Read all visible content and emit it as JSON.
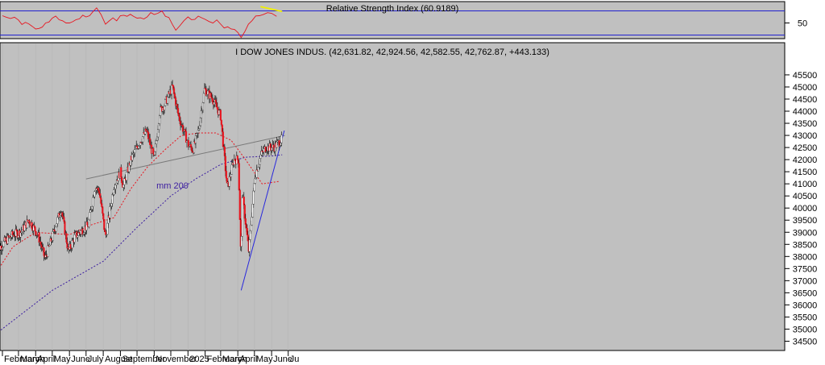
{
  "chart_data": [
    {
      "type": "line",
      "title": "Relative Strength Index (60.9189)",
      "y_ticks": [
        50
      ],
      "bands": [
        30,
        70
      ],
      "series": [
        {
          "name": "Relative Strength Index",
          "color": "#e8141e",
          "x": [
            "2024-02-01",
            "2024-03-01",
            "2024-04-01",
            "2024-05-01",
            "2024-06-01",
            "2024-07-01",
            "2024-07-20",
            "2024-08-05",
            "2024-09-01",
            "2024-10-01",
            "2024-11-01",
            "2024-11-15",
            "2024-12-10",
            "2025-01-01",
            "2025-02-01",
            "2025-03-01",
            "2025-03-20",
            "2025-04-07",
            "2025-04-20",
            "2025-05-10",
            "2025-06-01",
            "2025-06-10"
          ],
          "values": [
            62,
            55,
            40,
            58,
            50,
            60,
            75,
            48,
            62,
            58,
            64,
            70,
            38,
            60,
            56,
            48,
            40,
            26,
            48,
            62,
            66,
            61
          ]
        },
        {
          "name": "",
          "color": "#f0f000",
          "x": [
            "2025-05-12",
            "2025-06-20"
          ],
          "values": [
            77,
            69
          ]
        }
      ]
    },
    {
      "type": "candlestick",
      "title": "I DOW JONES INDUS. (42,631.82, 42,924.56, 42,582.55, 42,762.87, +443.133)",
      "x_ticks": [
        "February",
        "March",
        "April",
        "May",
        "June",
        "July",
        "August",
        "September",
        "",
        "November",
        "",
        "2025",
        "February",
        "March",
        "April",
        "May",
        "June",
        "Ju"
      ],
      "x_tick_dates": [
        "2024-02-01",
        "2024-03-01",
        "2024-04-01",
        "2024-05-01",
        "2024-06-01",
        "2024-07-01",
        "2024-08-01",
        "2024-09-01",
        "2024-10-01",
        "2024-11-01",
        "2024-12-01",
        "2025-01-01",
        "2025-02-01",
        "2025-03-01",
        "2025-04-01",
        "2025-05-01",
        "2025-06-01",
        "2025-07-01"
      ],
      "ylim": [
        34000,
        46000
      ],
      "y_ticks": [
        34500,
        35000,
        35500,
        36000,
        36500,
        37000,
        37500,
        38000,
        38500,
        39000,
        39500,
        40000,
        40500,
        41000,
        41500,
        42000,
        42500,
        43000,
        43500,
        44000,
        44500,
        45000,
        45500
      ],
      "annotations": [
        {
          "text": "mm 200",
          "x": "2024-11-05",
          "y": 40800
        }
      ],
      "price_path": {
        "x": [
          "2024-01-20",
          "2024-02-05",
          "2024-02-20",
          "2024-03-05",
          "2024-03-20",
          "2024-04-05",
          "2024-04-18",
          "2024-05-01",
          "2024-05-17",
          "2024-05-30",
          "2024-06-10",
          "2024-06-25",
          "2024-07-05",
          "2024-07-17",
          "2024-07-25",
          "2024-08-05",
          "2024-08-20",
          "2024-09-01",
          "2024-09-06",
          "2024-09-20",
          "2024-10-05",
          "2024-10-18",
          "2024-11-01",
          "2024-11-11",
          "2024-11-20",
          "2024-12-04",
          "2024-12-15",
          "2025-01-02",
          "2025-01-10",
          "2025-01-20",
          "2025-01-31",
          "2025-02-15",
          "2025-03-01",
          "2025-03-13",
          "2025-03-25",
          "2025-04-02",
          "2025-04-07",
          "2025-04-09",
          "2025-04-21",
          "2025-05-02",
          "2025-05-13",
          "2025-05-22",
          "2025-06-05",
          "2025-06-20"
        ],
        "values": [
          38200,
          38600,
          38900,
          39000,
          39500,
          38900,
          37900,
          38800,
          40000,
          38200,
          38800,
          39100,
          39300,
          40900,
          40700,
          38800,
          40900,
          41500,
          40900,
          42000,
          42700,
          43200,
          42000,
          44000,
          44300,
          45000,
          43800,
          42600,
          42400,
          43200,
          44900,
          44500,
          43800,
          40800,
          42000,
          42000,
          37700,
          40600,
          38200,
          41300,
          42200,
          42500,
          42500,
          42850
        ]
      },
      "series": [
        {
          "name": "mm 200",
          "color": "#3c1ea0",
          "x": [
            "2024-01-20",
            "2024-05-01",
            "2024-08-01",
            "2024-10-01",
            "2024-12-01",
            "2025-01-15",
            "2025-03-01",
            "2025-04-15",
            "2025-06-01",
            "2025-06-20"
          ],
          "values": [
            34800,
            36600,
            37800,
            39200,
            40500,
            41200,
            41800,
            42100,
            42150,
            42200
          ]
        },
        {
          "name": "",
          "color": "#e8141e",
          "x": [
            "2024-01-20",
            "2024-02-20",
            "2024-04-01",
            "2024-06-01",
            "2024-07-10",
            "2024-08-20",
            "2024-09-20",
            "2024-10-20",
            "2024-11-20",
            "2024-12-20",
            "2025-01-20",
            "2025-02-20",
            "2025-03-20",
            "2025-04-15",
            "2025-05-15",
            "2025-06-15"
          ],
          "values": [
            37300,
            38400,
            39000,
            38900,
            39300,
            39600,
            40800,
            41700,
            42400,
            43000,
            43100,
            43100,
            42800,
            42000,
            41000,
            41100
          ]
        },
        {
          "name": "",
          "color": "#7a7a7a",
          "x": [
            "2024-07-01",
            "2025-06-25"
          ],
          "values": [
            41200,
            43000
          ]
        },
        {
          "name": "",
          "color": "#2828dc",
          "x": [
            "2025-04-07",
            "2025-06-24"
          ],
          "values": [
            36600,
            43200
          ]
        }
      ]
    }
  ]
}
